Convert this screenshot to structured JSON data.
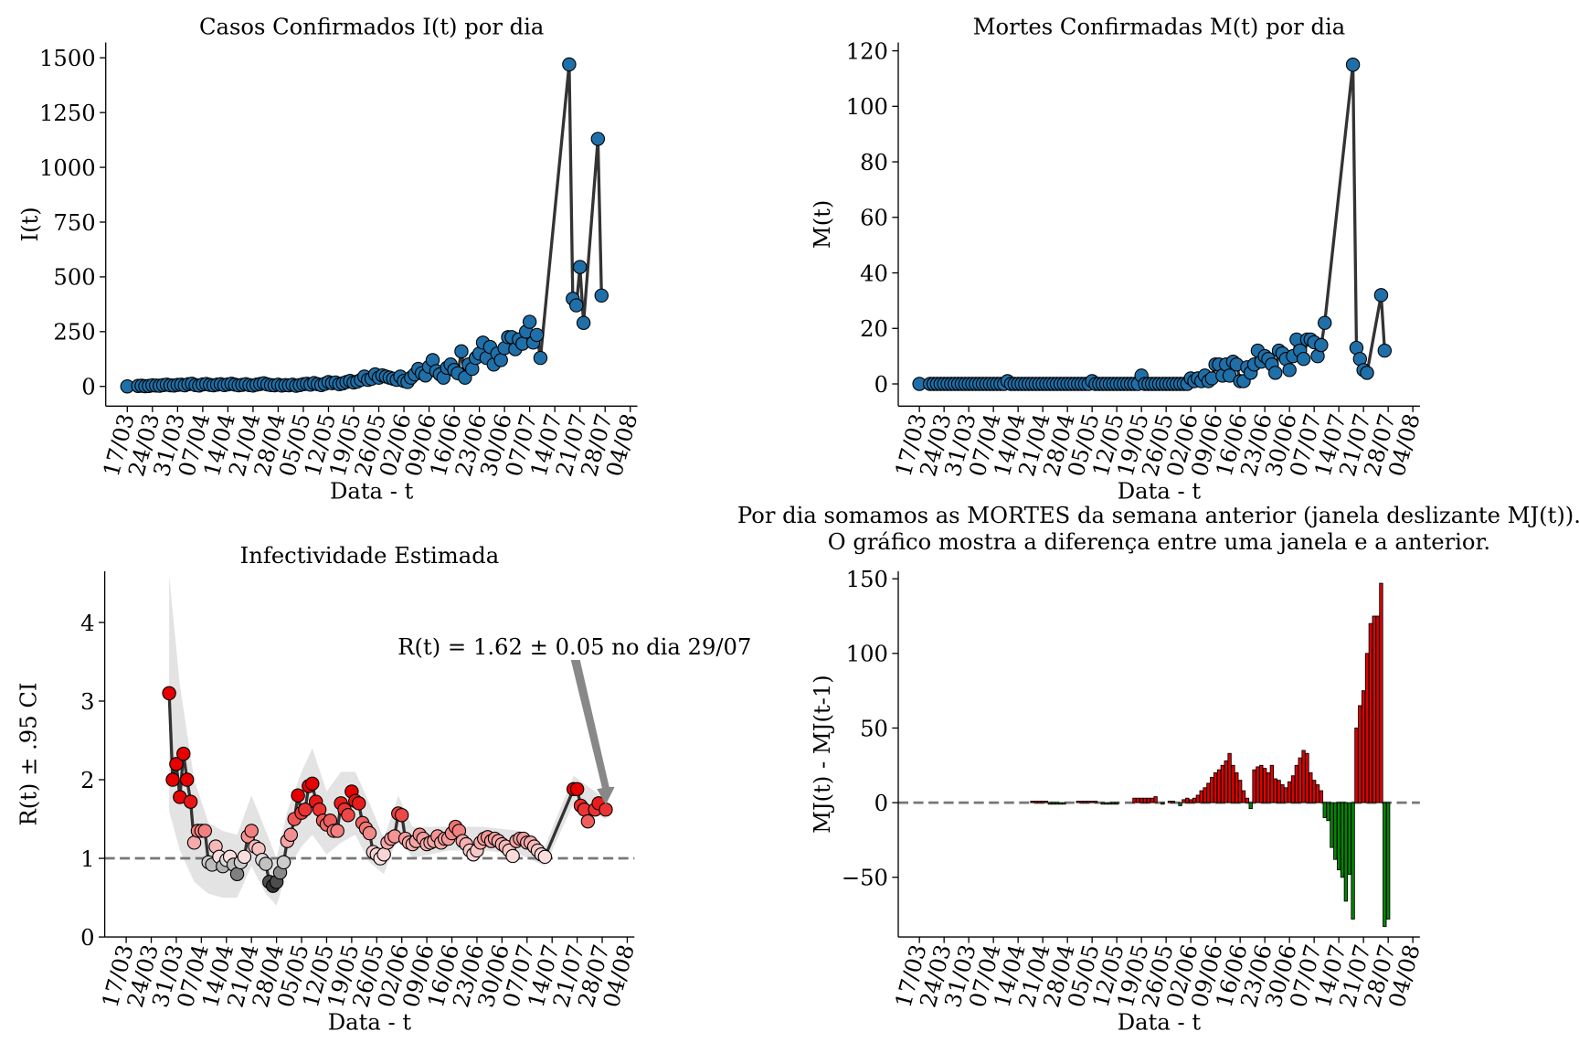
{
  "chart_data": [
    {
      "type": "line",
      "title": "Casos Confirmados I(t) por dia",
      "xlabel": "Data - t",
      "ylabel": "I(t)",
      "xlim": [
        "11/03",
        "06/08"
      ],
      "ylim": [
        -90,
        1570
      ],
      "yticks": [
        0,
        250,
        500,
        750,
        1000,
        1250,
        1500
      ],
      "xticks": [
        "17/03",
        "24/03",
        "31/03",
        "07/04",
        "14/04",
        "21/04",
        "28/04",
        "05/05",
        "12/05",
        "19/05",
        "26/05",
        "02/06",
        "09/06",
        "16/06",
        "23/06",
        "30/06",
        "07/07",
        "14/07",
        "21/07",
        "28/07",
        "04/08"
      ],
      "line_color": "#333333",
      "marker_color": "#1f6fa8",
      "x": [
        "17/03",
        "20/03",
        "21/03",
        "22/03",
        "23/03",
        "24/03",
        "25/03",
        "26/03",
        "27/03",
        "28/03",
        "29/03",
        "30/03",
        "31/03",
        "01/04",
        "02/04",
        "03/04",
        "04/04",
        "05/04",
        "06/04",
        "07/04",
        "08/04",
        "09/04",
        "10/04",
        "11/04",
        "12/04",
        "13/04",
        "14/04",
        "15/04",
        "16/04",
        "17/04",
        "18/04",
        "19/04",
        "20/04",
        "21/04",
        "22/04",
        "23/04",
        "24/04",
        "25/04",
        "26/04",
        "27/04",
        "28/04",
        "29/04",
        "30/04",
        "01/05",
        "02/05",
        "03/05",
        "04/05",
        "05/05",
        "06/05",
        "07/05",
        "08/05",
        "09/05",
        "10/05",
        "11/05",
        "12/05",
        "13/05",
        "14/05",
        "15/05",
        "16/05",
        "17/05",
        "18/05",
        "19/05",
        "20/05",
        "21/05",
        "22/05",
        "23/05",
        "24/05",
        "25/05",
        "26/05",
        "27/05",
        "28/05",
        "29/05",
        "30/05",
        "31/05",
        "01/06",
        "02/06",
        "03/06",
        "04/06",
        "05/06",
        "06/06",
        "07/06",
        "08/06",
        "09/06",
        "10/06",
        "11/06",
        "12/06",
        "13/06",
        "14/06",
        "15/06",
        "16/06",
        "17/06",
        "18/06",
        "19/06",
        "20/06",
        "21/06",
        "22/06",
        "23/06",
        "24/06",
        "25/06",
        "26/06",
        "27/06",
        "28/06",
        "29/06",
        "30/06",
        "01/07",
        "02/07",
        "03/07",
        "04/07",
        "05/07",
        "06/07",
        "07/07",
        "08/07",
        "09/07",
        "10/07",
        "18/07",
        "19/07",
        "20/07",
        "21/07",
        "22/07",
        "26/07",
        "27/07"
      ],
      "values": [
        0,
        2,
        3,
        1,
        2,
        5,
        4,
        3,
        6,
        8,
        5,
        4,
        7,
        8,
        5,
        10,
        12,
        6,
        4,
        9,
        11,
        7,
        5,
        8,
        10,
        6,
        9,
        12,
        8,
        5,
        7,
        10,
        6,
        4,
        8,
        11,
        14,
        9,
        6,
        5,
        8,
        4,
        6,
        5,
        8,
        3,
        6,
        10,
        12,
        8,
        15,
        10,
        6,
        12,
        20,
        15,
        18,
        10,
        14,
        20,
        25,
        18,
        22,
        30,
        45,
        30,
        35,
        55,
        40,
        50,
        45,
        40,
        35,
        30,
        45,
        25,
        20,
        40,
        55,
        80,
        60,
        50,
        90,
        120,
        70,
        55,
        40,
        85,
        100,
        75,
        60,
        160,
        40,
        100,
        80,
        130,
        150,
        200,
        130,
        180,
        100,
        150,
        120,
        175,
        225,
        225,
        170,
        215,
        195,
        250,
        295,
        200,
        235,
        130,
        1470,
        400,
        370,
        545,
        290,
        1130,
        415
      ]
    },
    {
      "type": "line",
      "title": "Mortes Confirmadas M(t) por dia",
      "xlabel": "Data - t",
      "ylabel": "M(t)",
      "xlim": [
        "11/03",
        "06/08"
      ],
      "ylim": [
        -8,
        123
      ],
      "yticks": [
        0,
        20,
        40,
        60,
        80,
        100,
        120
      ],
      "xticks": [
        "17/03",
        "24/03",
        "31/03",
        "07/04",
        "14/04",
        "21/04",
        "28/04",
        "05/05",
        "12/05",
        "19/05",
        "26/05",
        "02/06",
        "09/06",
        "16/06",
        "23/06",
        "30/06",
        "07/07",
        "14/07",
        "21/07",
        "28/07",
        "04/08"
      ],
      "line_color": "#333333",
      "marker_color": "#1f6fa8",
      "x": [
        "17/03",
        "20/03",
        "21/03",
        "22/03",
        "23/03",
        "24/03",
        "25/03",
        "26/03",
        "27/03",
        "28/03",
        "29/03",
        "30/03",
        "31/03",
        "01/04",
        "02/04",
        "03/04",
        "04/04",
        "05/04",
        "06/04",
        "07/04",
        "08/04",
        "09/04",
        "10/04",
        "11/04",
        "12/04",
        "13/04",
        "14/04",
        "15/04",
        "16/04",
        "17/04",
        "18/04",
        "19/04",
        "20/04",
        "21/04",
        "22/04",
        "23/04",
        "24/04",
        "25/04",
        "26/04",
        "27/04",
        "28/04",
        "29/04",
        "30/04",
        "01/05",
        "02/05",
        "03/05",
        "04/05",
        "05/05",
        "06/05",
        "07/05",
        "08/05",
        "09/05",
        "10/05",
        "11/05",
        "12/05",
        "13/05",
        "14/05",
        "15/05",
        "16/05",
        "17/05",
        "18/05",
        "19/05",
        "20/05",
        "21/05",
        "22/05",
        "23/05",
        "24/05",
        "25/05",
        "26/05",
        "27/05",
        "28/05",
        "29/05",
        "30/05",
        "31/05",
        "01/06",
        "02/06",
        "03/06",
        "04/06",
        "05/06",
        "06/06",
        "07/06",
        "08/06",
        "09/06",
        "10/06",
        "11/06",
        "12/06",
        "13/06",
        "14/06",
        "15/06",
        "16/06",
        "17/06",
        "18/06",
        "19/06",
        "20/06",
        "21/06",
        "22/06",
        "23/06",
        "24/06",
        "25/06",
        "26/06",
        "27/06",
        "28/06",
        "29/06",
        "30/06",
        "01/07",
        "02/07",
        "03/07",
        "04/07",
        "05/07",
        "06/07",
        "07/07",
        "08/07",
        "09/07",
        "10/07",
        "18/07",
        "19/07",
        "20/07",
        "21/07",
        "22/07",
        "26/07",
        "27/07"
      ],
      "values": [
        0,
        0,
        0,
        0,
        0,
        0,
        0,
        0,
        0,
        0,
        0,
        0,
        0,
        0,
        0,
        0,
        0,
        0,
        0,
        0,
        0,
        0,
        0,
        1,
        0,
        0,
        0,
        0,
        0,
        0,
        0,
        0,
        0,
        0,
        0,
        0,
        0,
        0,
        0,
        0,
        0,
        0,
        0,
        0,
        0,
        0,
        0,
        1,
        0,
        0,
        0,
        0,
        0,
        0,
        0,
        0,
        0,
        0,
        0,
        0,
        0,
        3,
        0,
        0,
        0,
        0,
        0,
        0,
        0,
        0,
        0,
        0,
        0,
        0,
        0,
        2,
        1,
        2,
        1,
        3,
        1,
        2,
        7,
        7,
        3,
        7,
        3,
        8,
        7,
        1,
        1,
        6,
        4,
        7,
        12,
        8,
        10,
        9,
        7,
        4,
        12,
        11,
        9,
        5,
        10,
        16,
        12,
        9,
        16,
        16,
        15,
        10,
        14,
        22,
        115,
        13,
        9,
        5,
        4,
        32,
        12
      ]
    },
    {
      "type": "line",
      "title": "Infectividade Estimada",
      "xlabel": "Data - t",
      "ylabel": "R(t) ± .95 CI",
      "annotation": "R(t) = 1.62 ± 0.05 no dia 29/07",
      "xlim": [
        "11/03",
        "06/08"
      ],
      "ylim": [
        0,
        4.65
      ],
      "yticks": [
        0,
        1,
        2,
        3,
        4
      ],
      "hline": 1,
      "xticks": [
        "17/03",
        "24/03",
        "31/03",
        "07/04",
        "14/04",
        "21/04",
        "28/04",
        "05/05",
        "12/05",
        "19/05",
        "26/05",
        "02/06",
        "09/06",
        "16/06",
        "23/06",
        "30/06",
        "07/07",
        "14/07",
        "21/07",
        "28/07",
        "04/08"
      ],
      "line_color": "#333333",
      "band_color": "#e3e3e3",
      "x": [
        "29/03",
        "30/03",
        "31/03",
        "01/04",
        "02/04",
        "03/04",
        "04/04",
        "05/04",
        "06/04",
        "07/04",
        "08/04",
        "09/04",
        "10/04",
        "11/04",
        "12/04",
        "13/04",
        "14/04",
        "15/04",
        "16/04",
        "17/04",
        "18/04",
        "19/04",
        "20/04",
        "21/04",
        "22/04",
        "23/04",
        "24/04",
        "25/04",
        "26/04",
        "27/04",
        "28/04",
        "29/04",
        "30/04",
        "01/05",
        "02/05",
        "03/05",
        "04/05",
        "05/05",
        "06/05",
        "07/05",
        "08/05",
        "09/05",
        "10/05",
        "11/05",
        "12/05",
        "13/05",
        "14/05",
        "15/05",
        "16/05",
        "17/05",
        "18/05",
        "19/05",
        "20/05",
        "21/05",
        "22/05",
        "23/05",
        "24/05",
        "25/05",
        "26/05",
        "27/05",
        "28/05",
        "29/05",
        "30/05",
        "31/05",
        "01/06",
        "02/06",
        "03/06",
        "04/06",
        "05/06",
        "06/06",
        "07/06",
        "08/06",
        "09/06",
        "10/06",
        "11/06",
        "12/06",
        "13/06",
        "14/06",
        "15/06",
        "16/06",
        "17/06",
        "18/06",
        "19/06",
        "20/06",
        "21/06",
        "22/06",
        "23/06",
        "24/06",
        "25/06",
        "26/06",
        "27/06",
        "28/06",
        "29/06",
        "30/06",
        "01/07",
        "02/07",
        "03/07",
        "04/07",
        "05/07",
        "06/07",
        "07/07",
        "08/07",
        "09/07",
        "10/07",
        "11/07",
        "12/07",
        "20/07",
        "21/07",
        "22/07",
        "23/07",
        "24/07",
        "26/07",
        "27/07",
        "29/07"
      ],
      "values": [
        3.1,
        2.0,
        2.2,
        1.78,
        2.33,
        2.0,
        1.72,
        1.2,
        1.35,
        1.35,
        1.35,
        0.95,
        0.92,
        1.15,
        1.02,
        0.9,
        0.98,
        1.02,
        0.92,
        0.8,
        0.95,
        1.02,
        1.28,
        1.35,
        1.15,
        1.12,
        0.98,
        0.93,
        0.7,
        0.65,
        0.7,
        0.82,
        0.95,
        1.22,
        1.3,
        1.5,
        1.8,
        1.58,
        1.62,
        1.92,
        1.95,
        1.72,
        1.62,
        1.48,
        1.43,
        1.48,
        1.35,
        1.35,
        1.7,
        1.62,
        1.55,
        1.85,
        1.73,
        1.7,
        1.45,
        1.38,
        1.32,
        1.08,
        1.05,
        1.0,
        1.05,
        1.2,
        1.25,
        1.28,
        1.57,
        1.55,
        1.25,
        1.2,
        1.18,
        1.22,
        1.3,
        1.25,
        1.18,
        1.2,
        1.22,
        1.28,
        1.2,
        1.25,
        1.25,
        1.32,
        1.4,
        1.35,
        1.22,
        1.18,
        1.1,
        1.05,
        1.1,
        1.2,
        1.25,
        1.27,
        1.22,
        1.25,
        1.22,
        1.18,
        1.15,
        1.1,
        1.03,
        1.22,
        1.25,
        1.25,
        1.2,
        1.2,
        1.15,
        1.1,
        1.05,
        1.02,
        1.88,
        1.88,
        1.67,
        1.62,
        1.47,
        1.62,
        1.7,
        1.62
      ],
      "band": {
        "x": [
          "29/03",
          "01/04",
          "05/04",
          "09/04",
          "13/04",
          "17/04",
          "21/04",
          "25/04",
          "28/04",
          "01/05",
          "05/05",
          "08/05",
          "12/05",
          "16/05",
          "20/05",
          "24/05",
          "28/05",
          "01/06",
          "05/06",
          "15/06",
          "25/06",
          "05/07",
          "12/07",
          "20/07",
          "29/07"
        ],
        "lower": [
          1.6,
          1.1,
          0.7,
          0.55,
          0.5,
          0.5,
          0.9,
          0.55,
          0.4,
          0.85,
          1.15,
          1.3,
          1.05,
          1.2,
          1.3,
          0.95,
          0.8,
          1.3,
          1.0,
          1.1,
          1.1,
          1.05,
          0.9,
          1.7,
          1.5
        ],
        "upper": [
          4.6,
          3.2,
          2.0,
          1.45,
          1.35,
          1.3,
          1.8,
          1.35,
          1.0,
          1.6,
          2.1,
          2.4,
          1.85,
          2.1,
          2.1,
          1.7,
          1.25,
          1.8,
          1.4,
          1.4,
          1.4,
          1.35,
          1.15,
          2.05,
          1.75
        ]
      }
    },
    {
      "type": "bar",
      "title": [
        "Por dia somamos as MORTES da semana anterior (janela deslizante MJ(t)).",
        "O gráfico mostra a diferença entre uma janela e a anterior."
      ],
      "xlabel": "Data - t",
      "ylabel": "MJ(t) - MJ(t-1)",
      "xlim": [
        "11/03",
        "06/08"
      ],
      "ylim": [
        -90,
        155
      ],
      "hline": 0,
      "yticks": [
        {
          "value": -50,
          "label": "−50"
        },
        0,
        50,
        100,
        150
      ],
      "xticks": [
        "17/03",
        "24/03",
        "31/03",
        "07/04",
        "14/04",
        "21/04",
        "28/04",
        "05/05",
        "12/05",
        "19/05",
        "26/05",
        "02/06",
        "09/06",
        "16/06",
        "23/06",
        "30/06",
        "07/07",
        "14/07",
        "21/07",
        "28/07",
        "04/08"
      ],
      "pos_color": "#e00000",
      "neg_color": "#008800",
      "x": [
        "01/04",
        "02/04",
        "03/04",
        "04/04",
        "05/04",
        "06/04",
        "07/04",
        "08/04",
        "09/04",
        "10/04",
        "11/04",
        "12/04",
        "13/04",
        "14/04",
        "15/04",
        "16/04",
        "17/04",
        "18/04",
        "19/04",
        "20/04",
        "21/04",
        "22/04",
        "23/04",
        "24/04",
        "25/04",
        "26/04",
        "27/04",
        "28/04",
        "29/04",
        "30/04",
        "01/05",
        "02/05",
        "03/05",
        "04/05",
        "05/05",
        "06/05",
        "07/05",
        "08/05",
        "09/05",
        "10/05",
        "11/05",
        "12/05",
        "13/05",
        "14/05",
        "15/05",
        "16/05",
        "17/05",
        "18/05",
        "19/05",
        "20/05",
        "21/05",
        "22/05",
        "23/05",
        "24/05",
        "25/05",
        "26/05",
        "27/05",
        "28/05",
        "29/05",
        "30/05",
        "31/05",
        "01/06",
        "02/06",
        "03/06",
        "04/06",
        "05/06",
        "06/06",
        "07/06",
        "08/06",
        "09/06",
        "10/06",
        "11/06",
        "12/06",
        "13/06",
        "14/06",
        "15/06",
        "16/06",
        "17/06",
        "18/06",
        "19/06",
        "20/06",
        "21/06",
        "22/06",
        "23/06",
        "24/06",
        "25/06",
        "26/06",
        "27/06",
        "28/06",
        "29/06",
        "30/06",
        "01/07",
        "02/07",
        "03/07",
        "04/07",
        "05/07",
        "06/07",
        "07/07",
        "08/07",
        "09/07",
        "10/07",
        "11/07",
        "12/07",
        "13/07",
        "14/07",
        "15/07",
        "16/07",
        "17/07",
        "18/07",
        "19/07",
        "20/07",
        "21/07",
        "22/07",
        "23/07",
        "24/07",
        "25/07",
        "26/07",
        "27/07",
        "28/07"
      ],
      "values": [
        0,
        0,
        0,
        0,
        0,
        0,
        0,
        0,
        0,
        0,
        0,
        0,
        0,
        0,
        0,
        0,
        0,
        1,
        1,
        1,
        1,
        1,
        -1,
        -1,
        -1,
        -1,
        -1,
        0,
        0,
        0,
        1,
        1,
        1,
        1,
        1,
        1,
        0,
        -1,
        -1,
        -1,
        -1,
        -1,
        0,
        0,
        0,
        0,
        3,
        3,
        3,
        3,
        3,
        3,
        4,
        0,
        -1,
        0,
        1,
        1,
        0,
        -2,
        2,
        3,
        2,
        3,
        5,
        8,
        10,
        13,
        17,
        20,
        22,
        25,
        28,
        33,
        25,
        20,
        15,
        8,
        3,
        -4,
        22,
        24,
        25,
        23,
        20,
        25,
        16,
        15,
        12,
        10,
        14,
        18,
        25,
        30,
        35,
        33,
        20,
        15,
        12,
        8,
        -10,
        -12,
        -30,
        -38,
        -45,
        -50,
        -66,
        -48,
        -78,
        50,
        65,
        75,
        100,
        120,
        125,
        125,
        147,
        -83,
        -78
      ]
    }
  ]
}
